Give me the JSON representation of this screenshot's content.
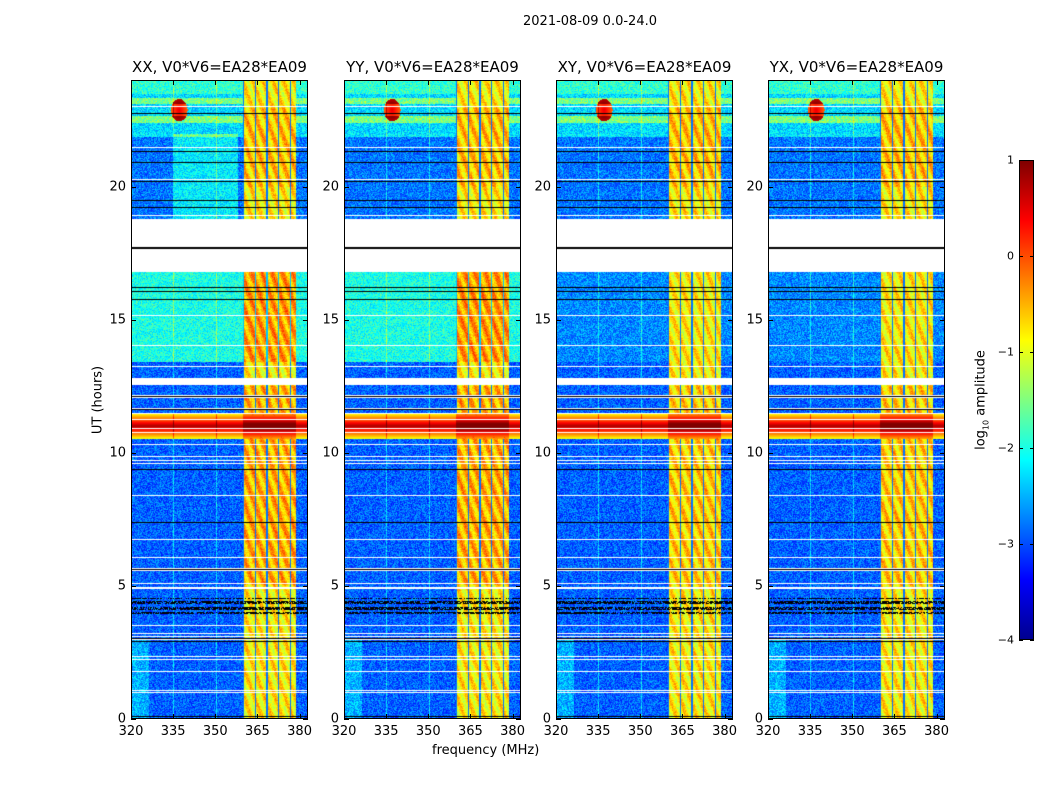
{
  "chart_data": {
    "type": "heatmap",
    "title": "2021-08-09 0.0-24.0",
    "xlabel": "frequency (MHz)",
    "ylabel": "UT (hours)",
    "xlim": [
      320,
      383
    ],
    "ylim": [
      0,
      24
    ],
    "xticks": [
      "320",
      "335",
      "350",
      "365",
      "380"
    ],
    "xtick_values": [
      320,
      335,
      350,
      365,
      380
    ],
    "yticks": [
      "0",
      "5",
      "10",
      "15",
      "20"
    ],
    "ytick_values": [
      0,
      5,
      10,
      15,
      20
    ],
    "panels": [
      {
        "title": "XX, V0*V6=EA28*EA09",
        "pol": "XX",
        "hi_level": true
      },
      {
        "title": "YY, V0*V6=EA28*EA09",
        "pol": "YY",
        "hi_level": true
      },
      {
        "title": "XY, V0*V6=EA28*EA09",
        "pol": "XY",
        "hi_level": false
      },
      {
        "title": "YX, V0*V6=EA28*EA09",
        "pol": "YX",
        "hi_level": false
      }
    ],
    "colorbar": {
      "label_main": "log",
      "label_sub": "10",
      "label_rest": " amplitude",
      "range": [
        -4,
        1
      ],
      "ticks": [
        "−4",
        "−3",
        "−2",
        "−1",
        "0",
        "1"
      ],
      "tick_values": [
        -4,
        -3,
        -2,
        -1,
        0,
        1
      ],
      "colormap": "jet"
    },
    "features": {
      "background_level": -2.9,
      "rfi_band_mhz": [
        360,
        379
      ],
      "rfi_band_level": -0.8,
      "strong_rfi_hours": [
        10.5,
        11.5
      ],
      "strong_rfi_level": 0.6,
      "flagged_gap_hours": [
        16.8,
        18.8
      ],
      "flagged_gap2_hours": [
        12.55,
        12.8
      ],
      "dense_flag_lines_hours": [
        3.9,
        4.6
      ],
      "top_hot_spot_mhz": 337,
      "top_hot_spot_hours": [
        22.6,
        23.2
      ]
    }
  }
}
